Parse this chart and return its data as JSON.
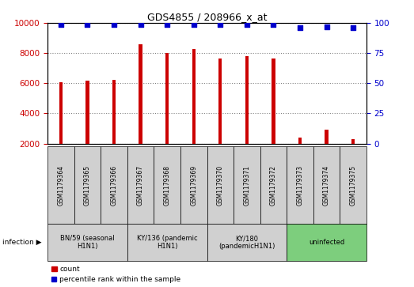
{
  "title": "GDS4855 / 208966_x_at",
  "samples": [
    "GSM1179364",
    "GSM1179365",
    "GSM1179366",
    "GSM1179367",
    "GSM1179368",
    "GSM1179369",
    "GSM1179370",
    "GSM1179371",
    "GSM1179372",
    "GSM1179373",
    "GSM1179374",
    "GSM1179375"
  ],
  "counts": [
    6050,
    6150,
    6200,
    8600,
    8000,
    8250,
    7650,
    7800,
    7650,
    2400,
    2900,
    2300
  ],
  "percentile_ranks": [
    99,
    99,
    99,
    99,
    99,
    99,
    99,
    99,
    99,
    96,
    97,
    96
  ],
  "ylim_left": [
    2000,
    10000
  ],
  "ylim_right": [
    0,
    100
  ],
  "yticks_left": [
    2000,
    4000,
    6000,
    8000,
    10000
  ],
  "yticks_right": [
    0,
    25,
    50,
    75,
    100
  ],
  "groups": [
    {
      "label": "BN/59 (seasonal\nH1N1)",
      "start": 1,
      "end": 3,
      "color": "#d0d0d0"
    },
    {
      "label": "KY/136 (pandemic\nH1N1)",
      "start": 4,
      "end": 6,
      "color": "#d0d0d0"
    },
    {
      "label": "KY/180\n(pandemicH1N1)",
      "start": 7,
      "end": 9,
      "color": "#d0d0d0"
    },
    {
      "label": "uninfected",
      "start": 10,
      "end": 12,
      "color": "#7dce7d"
    }
  ],
  "bar_color": "#cc0000",
  "dot_color": "#0000cc",
  "bar_width": 0.13,
  "left_axis_color": "#cc0000",
  "right_axis_color": "#0000cc",
  "infection_label": "infection"
}
